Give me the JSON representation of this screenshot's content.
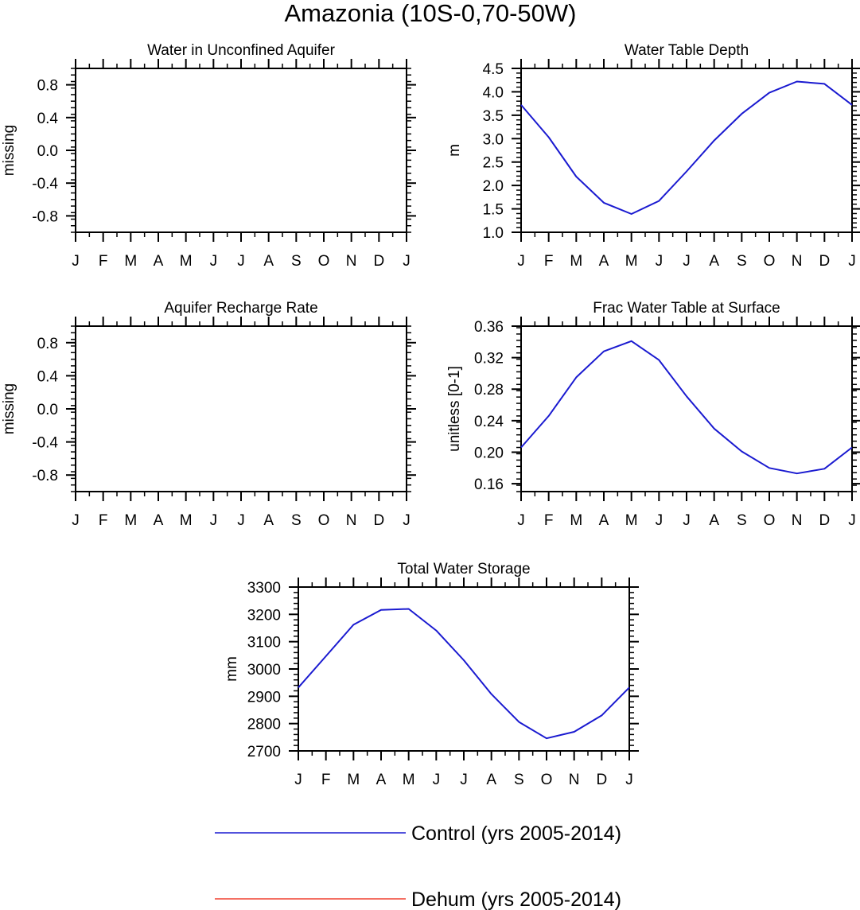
{
  "figure_title": "Amazonia (10S-0,70-50W)",
  "colors": {
    "control": "#1a1ad0",
    "dehum": "#f04030",
    "axis": "#000000"
  },
  "legend": [
    {
      "label": "Control (yrs 2005-2014)",
      "color": "#1a1ad0"
    },
    {
      "label": "Dehum (yrs 2005-2014)",
      "color": "#f04030"
    }
  ],
  "chart_data": [
    {
      "id": "water-unconfined-aquifer",
      "type": "line",
      "title": "Water in Unconfined Aquifer",
      "ylabel": "missing",
      "xlabel": "",
      "categories": [
        "J",
        "F",
        "M",
        "A",
        "M",
        "J",
        "J",
        "A",
        "S",
        "O",
        "N",
        "D",
        "J"
      ],
      "ylim": [
        -1.0,
        1.0
      ],
      "yticks": [
        -0.8,
        -0.4,
        0.0,
        0.4,
        0.8
      ],
      "ytick_labels": [
        "-0.8",
        "-0.4",
        "0.0",
        "0.4",
        "0.8"
      ],
      "series": []
    },
    {
      "id": "water-table-depth",
      "type": "line",
      "title": "Water Table Depth",
      "ylabel": "m",
      "xlabel": "",
      "categories": [
        "J",
        "F",
        "M",
        "A",
        "M",
        "J",
        "J",
        "A",
        "S",
        "O",
        "N",
        "D",
        "J"
      ],
      "ylim": [
        1.0,
        4.5
      ],
      "yticks": [
        1.0,
        1.5,
        2.0,
        2.5,
        3.0,
        3.5,
        4.0,
        4.5
      ],
      "ytick_labels": [
        "1.0",
        "1.5",
        "2.0",
        "2.5",
        "3.0",
        "3.5",
        "4.0",
        "4.5"
      ],
      "series": [
        {
          "name": "Control (yrs 2005-2014)",
          "color": "#1a1ad0",
          "values": [
            3.72,
            3.03,
            2.19,
            1.63,
            1.39,
            1.67,
            2.3,
            2.96,
            3.53,
            3.98,
            4.22,
            4.17,
            3.72
          ]
        }
      ]
    },
    {
      "id": "aquifer-recharge-rate",
      "type": "line",
      "title": "Aquifer Recharge Rate",
      "ylabel": "missing",
      "xlabel": "",
      "categories": [
        "J",
        "F",
        "M",
        "A",
        "M",
        "J",
        "J",
        "A",
        "S",
        "O",
        "N",
        "D",
        "J"
      ],
      "ylim": [
        -1.0,
        1.0
      ],
      "yticks": [
        -0.8,
        -0.4,
        0.0,
        0.4,
        0.8
      ],
      "ytick_labels": [
        "-0.8",
        "-0.4",
        "0.0",
        "0.4",
        "0.8"
      ],
      "series": []
    },
    {
      "id": "frac-water-table",
      "type": "line",
      "title": "Frac Water Table at Surface",
      "ylabel": "unitless [0-1]",
      "xlabel": "",
      "categories": [
        "J",
        "F",
        "M",
        "A",
        "M",
        "J",
        "J",
        "A",
        "S",
        "O",
        "N",
        "D",
        "J"
      ],
      "ylim": [
        0.15,
        0.36
      ],
      "yticks": [
        0.16,
        0.2,
        0.24,
        0.28,
        0.32,
        0.36
      ],
      "ytick_labels": [
        "0.16",
        "0.20",
        "0.24",
        "0.28",
        "0.32",
        "0.36"
      ],
      "series": [
        {
          "name": "Control (yrs 2005-2014)",
          "color": "#1a1ad0",
          "values": [
            0.206,
            0.246,
            0.295,
            0.328,
            0.341,
            0.317,
            0.271,
            0.23,
            0.201,
            0.18,
            0.173,
            0.179,
            0.206
          ]
        }
      ]
    },
    {
      "id": "total-water-storage",
      "type": "line",
      "title": "Total Water Storage",
      "ylabel": "mm",
      "xlabel": "",
      "categories": [
        "J",
        "F",
        "M",
        "A",
        "M",
        "J",
        "J",
        "A",
        "S",
        "O",
        "N",
        "D",
        "J"
      ],
      "ylim": [
        2700,
        3300
      ],
      "yticks": [
        2700,
        2800,
        2900,
        3000,
        3100,
        3200,
        3300
      ],
      "ytick_labels": [
        "2700",
        "2800",
        "2900",
        "3000",
        "3100",
        "3200",
        "3300"
      ],
      "series": [
        {
          "name": "Control (yrs 2005-2014)",
          "color": "#1a1ad0",
          "values": [
            2932,
            3047,
            3162,
            3216,
            3220,
            3141,
            3032,
            2908,
            2806,
            2746,
            2770,
            2830,
            2932
          ]
        }
      ]
    }
  ]
}
